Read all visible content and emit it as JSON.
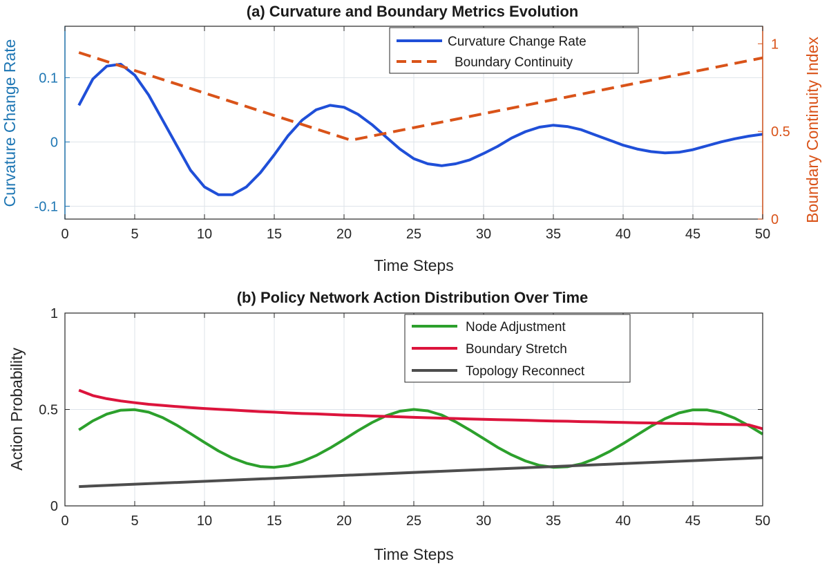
{
  "chart_data": [
    {
      "type": "line",
      "title": "(a) Curvature and Boundary Metrics Evolution",
      "xlabel": "Time Steps",
      "ylabel": "Curvature Change Rate",
      "y2label": "Boundary Continuity Index",
      "xlim": [
        0,
        50
      ],
      "ylim": [
        -0.12,
        0.18
      ],
      "y2lim": [
        0,
        1.1
      ],
      "grid": true,
      "legend_position": "top-right",
      "x_ticks": [
        "0",
        "5",
        "10",
        "15",
        "20",
        "25",
        "30",
        "35",
        "40",
        "45",
        "50"
      ],
      "y_ticks": [
        "-0.1",
        "0",
        "0.1"
      ],
      "y2_ticks": [
        "0",
        "0.5",
        "1"
      ],
      "colors": {
        "left_axis": "#1f77b4",
        "right_axis": "#d95319"
      },
      "series": [
        {
          "name": "Curvature Change Rate",
          "axis": "left",
          "color": "#1f4fd8",
          "style": "solid",
          "x": [
            1,
            2,
            3,
            4,
            5,
            6,
            7,
            8,
            9,
            10,
            11,
            12,
            13,
            14,
            15,
            16,
            17,
            18,
            19,
            20,
            21,
            22,
            23,
            24,
            25,
            26,
            27,
            28,
            29,
            30,
            31,
            32,
            33,
            34,
            35,
            36,
            37,
            38,
            39,
            40,
            41,
            42,
            43,
            44,
            45,
            46,
            47,
            48,
            49,
            50
          ],
          "y": [
            0.057,
            0.098,
            0.118,
            0.121,
            0.104,
            0.073,
            0.034,
            -0.005,
            -0.044,
            -0.07,
            -0.082,
            -0.082,
            -0.07,
            -0.048,
            -0.02,
            0.01,
            0.034,
            0.05,
            0.057,
            0.054,
            0.043,
            0.027,
            0.008,
            -0.011,
            -0.026,
            -0.034,
            -0.037,
            -0.034,
            -0.028,
            -0.018,
            -0.007,
            0.006,
            0.016,
            0.023,
            0.026,
            0.024,
            0.019,
            0.011,
            0.003,
            -0.005,
            -0.011,
            -0.015,
            -0.017,
            -0.016,
            -0.012,
            -0.006,
            0.0,
            0.005,
            0.009,
            0.012
          ]
        },
        {
          "name": "Boundary Continuity",
          "axis": "right",
          "color": "#d95319",
          "style": "dashed",
          "x": [
            1,
            20.5,
            50
          ],
          "y": [
            0.95,
            0.45,
            0.92
          ]
        }
      ]
    },
    {
      "type": "line",
      "title": "(b) Policy Network Action Distribution Over Time",
      "xlabel": "Time Steps",
      "ylabel": "Action Probability",
      "xlim": [
        0,
        50
      ],
      "ylim": [
        0,
        1
      ],
      "grid": true,
      "legend_position": "top-right",
      "x_ticks": [
        "0",
        "5",
        "10",
        "15",
        "20",
        "25",
        "30",
        "35",
        "40",
        "45",
        "50"
      ],
      "y_ticks": [
        "0",
        "0.5",
        "1"
      ],
      "series": [
        {
          "name": "Node Adjustment",
          "color": "#2ca02c",
          "style": "solid",
          "x": [
            1,
            2,
            3,
            4,
            5,
            6,
            7,
            8,
            9,
            10,
            11,
            12,
            13,
            14,
            15,
            16,
            17,
            18,
            19,
            20,
            21,
            22,
            23,
            24,
            25,
            26,
            27,
            28,
            29,
            30,
            31,
            32,
            33,
            34,
            35,
            36,
            37,
            38,
            39,
            40,
            41,
            42,
            43,
            44,
            45,
            46,
            47,
            48,
            49,
            50
          ],
          "y": [
            0.394,
            0.441,
            0.476,
            0.496,
            0.499,
            0.486,
            0.458,
            0.419,
            0.375,
            0.329,
            0.285,
            0.248,
            0.221,
            0.204,
            0.2,
            0.209,
            0.23,
            0.261,
            0.3,
            0.344,
            0.39,
            0.432,
            0.467,
            0.491,
            0.5,
            0.493,
            0.471,
            0.436,
            0.394,
            0.349,
            0.304,
            0.265,
            0.233,
            0.21,
            0.2,
            0.203,
            0.218,
            0.245,
            0.281,
            0.323,
            0.368,
            0.413,
            0.452,
            0.482,
            0.498,
            0.498,
            0.483,
            0.455,
            0.416,
            0.372
          ]
        },
        {
          "name": "Boundary Stretch",
          "color": "#dc143c",
          "style": "solid",
          "x": [
            1,
            2,
            3,
            4,
            5,
            6,
            7,
            8,
            9,
            10,
            11,
            12,
            13,
            14,
            15,
            16,
            17,
            18,
            19,
            20,
            21,
            22,
            23,
            24,
            25,
            26,
            27,
            28,
            29,
            30,
            31,
            32,
            33,
            34,
            35,
            36,
            37,
            38,
            39,
            40,
            41,
            42,
            43,
            44,
            45,
            46,
            47,
            48,
            49,
            50
          ],
          "y": [
            0.6,
            0.572,
            0.556,
            0.544,
            0.535,
            0.527,
            0.521,
            0.515,
            0.51,
            0.505,
            0.501,
            0.497,
            0.493,
            0.489,
            0.486,
            0.482,
            0.479,
            0.477,
            0.474,
            0.471,
            0.469,
            0.466,
            0.464,
            0.462,
            0.459,
            0.457,
            0.455,
            0.453,
            0.451,
            0.449,
            0.447,
            0.446,
            0.444,
            0.442,
            0.44,
            0.439,
            0.437,
            0.436,
            0.434,
            0.433,
            0.431,
            0.43,
            0.428,
            0.427,
            0.426,
            0.424,
            0.423,
            0.422,
            0.42,
            0.4
          ]
        },
        {
          "name": "Topology Reconnect",
          "color": "#4d4d4d",
          "style": "solid",
          "x": [
            1,
            50
          ],
          "y": [
            0.1,
            0.25
          ]
        }
      ]
    }
  ]
}
